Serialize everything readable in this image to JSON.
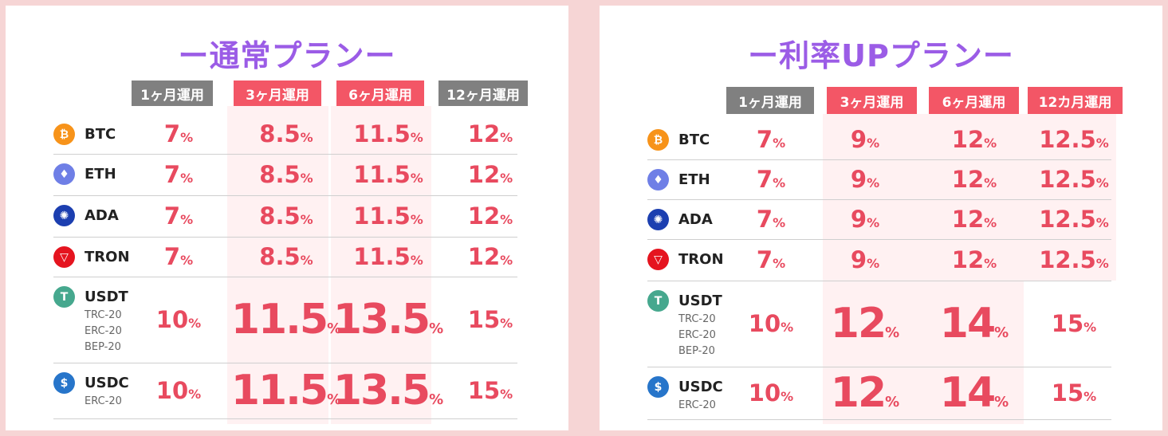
{
  "left": {
    "title": "ー通常プランー",
    "headers": [
      "1ヶ月運用",
      "3ヶ月運用",
      "6ヶ月運用",
      "12ヶ月運用"
    ],
    "rows": [
      {
        "coin": "BTC",
        "subs": [],
        "rates": [
          "7",
          "8.5",
          "11.5",
          "12"
        ]
      },
      {
        "coin": "ETH",
        "subs": [],
        "rates": [
          "7",
          "8.5",
          "11.5",
          "12"
        ]
      },
      {
        "coin": "ADA",
        "subs": [],
        "rates": [
          "7",
          "8.5",
          "11.5",
          "12"
        ]
      },
      {
        "coin": "TRON",
        "subs": [],
        "rates": [
          "7",
          "8.5",
          "11.5",
          "12"
        ]
      },
      {
        "coin": "USDT",
        "subs": [
          "TRC-20",
          "ERC-20",
          "BEP-20"
        ],
        "rates": [
          "10",
          "11.5",
          "13.5",
          "15"
        ]
      },
      {
        "coin": "USDC",
        "subs": [
          "ERC-20"
        ],
        "rates": [
          "10",
          "11.5",
          "13.5",
          "15"
        ]
      }
    ]
  },
  "right": {
    "title": "ー利率UPプランー",
    "headers": [
      "1ヶ月運用",
      "3ヶ月運用",
      "6ヶ月運用",
      "12カ月運用"
    ],
    "rows": [
      {
        "coin": "BTC",
        "subs": [],
        "rates": [
          "7",
          "9",
          "12",
          "12.5"
        ]
      },
      {
        "coin": "ETH",
        "subs": [],
        "rates": [
          "7",
          "9",
          "12",
          "12.5"
        ]
      },
      {
        "coin": "ADA",
        "subs": [],
        "rates": [
          "7",
          "9",
          "12",
          "12.5"
        ]
      },
      {
        "coin": "TRON",
        "subs": [],
        "rates": [
          "7",
          "9",
          "12",
          "12.5"
        ]
      },
      {
        "coin": "USDT",
        "subs": [
          "TRC-20",
          "ERC-20",
          "BEP-20"
        ],
        "rates": [
          "10",
          "12",
          "14",
          "15"
        ]
      },
      {
        "coin": "USDC",
        "subs": [
          "ERC-20"
        ],
        "rates": [
          "10",
          "12",
          "14",
          "15"
        ]
      }
    ]
  },
  "percent_sign": "%",
  "coin_icons": {
    "BTC": {
      "icon": "bitcoin-icon",
      "color": "#f7931a",
      "glyph": "₿"
    },
    "ETH": {
      "icon": "ethereum-icon",
      "color": "#6f7fe6",
      "glyph": "♦"
    },
    "ADA": {
      "icon": "cardano-icon",
      "color": "#1c3fb0",
      "glyph": "✺"
    },
    "TRON": {
      "icon": "tron-icon",
      "color": "#e5141f",
      "glyph": "▽"
    },
    "USDT": {
      "icon": "tether-icon",
      "color": "#46a88e",
      "glyph": "T"
    },
    "USDC": {
      "icon": "usdc-icon",
      "color": "#2775ca",
      "glyph": "$"
    }
  },
  "colors": {
    "accent": "#9b5ce6",
    "rate": "#e84a5f",
    "header_gray": "#808080",
    "header_red": "#f35666"
  }
}
